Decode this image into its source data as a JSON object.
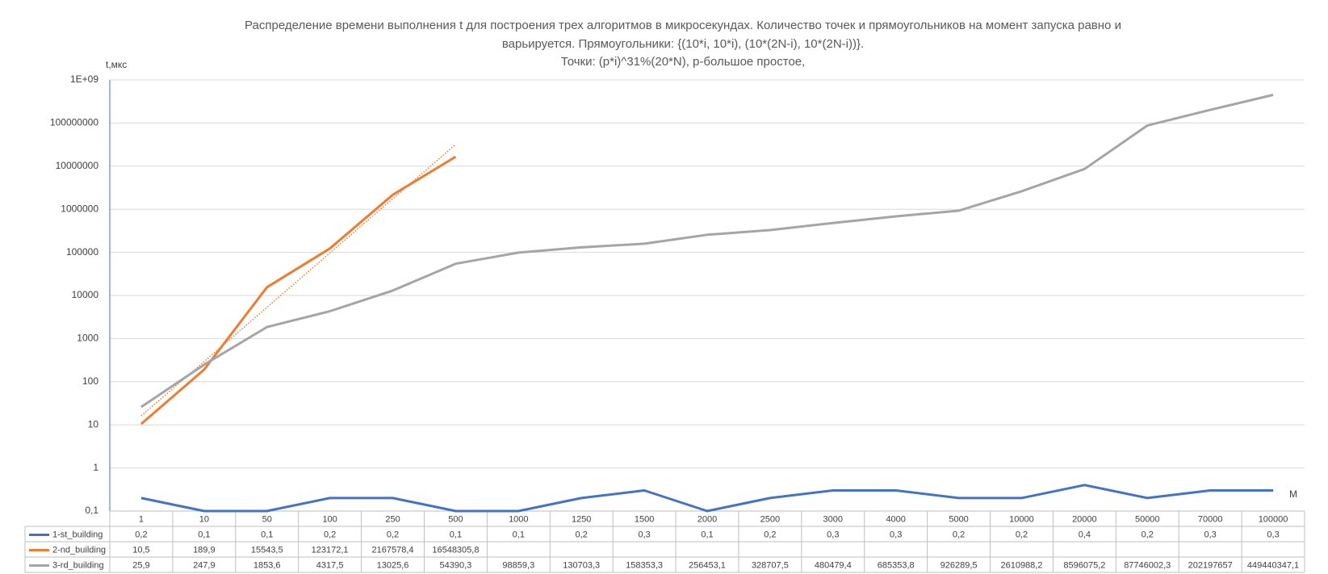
{
  "chart_data": {
    "type": "line",
    "title": [
      "Распределение времени выполнения t для построения трех алгоритмов в микросекундах. Количество точек и прямоугольников на момент запуска равно и",
      "варьируется. Прямоугольники: {(10*i, 10*i), (10*(2N-i), 10*(2N-i))}.",
      "Точки: (p*i)^31%(20*N), p-большое простое,"
    ],
    "y_label": "t,мкс",
    "x_label": "M",
    "categories": [
      "1",
      "10",
      "50",
      "100",
      "250",
      "500",
      "1000",
      "1250",
      "1500",
      "2000",
      "2500",
      "3000",
      "4000",
      "5000",
      "10000",
      "20000",
      "50000",
      "70000",
      "100000"
    ],
    "series": [
      {
        "name": "1-st_building",
        "color": "#4472c4",
        "values": [
          0.2,
          0.1,
          0.1,
          0.2,
          0.2,
          0.1,
          0.1,
          0.2,
          0.3,
          0.1,
          0.2,
          0.3,
          0.3,
          0.2,
          0.2,
          0.4,
          0.2,
          0.3,
          0.3
        ],
        "value_labels": [
          "0,2",
          "0,1",
          "0,1",
          "0,2",
          "0,2",
          "0,1",
          "0,1",
          "0,2",
          "0,3",
          "0,1",
          "0,2",
          "0,3",
          "0,3",
          "0,2",
          "0,2",
          "0,4",
          "0,2",
          "0,3",
          "0,3"
        ]
      },
      {
        "name": "2-nd_building",
        "color": "#ed7d31",
        "trendline": true,
        "values": [
          10.5,
          189.9,
          15543.5,
          123172.1,
          2167578.4,
          16548305.8,
          null,
          null,
          null,
          null,
          null,
          null,
          null,
          null,
          null,
          null,
          null,
          null,
          null
        ],
        "value_labels": [
          "10,5",
          "189,9",
          "15543,5",
          "123172,1",
          "2167578,4",
          "16548305,8",
          null,
          null,
          null,
          null,
          null,
          null,
          null,
          null,
          null,
          null,
          null,
          null,
          null
        ]
      },
      {
        "name": "3-rd_building",
        "color": "#a5a5a5",
        "values": [
          25.9,
          247.9,
          1853.6,
          4317.5,
          13025.6,
          54390.3,
          98859.3,
          130703.3,
          158353.3,
          256453.1,
          328707.5,
          480479.4,
          685353.8,
          926289.5,
          2610988.2,
          8596075.2,
          87746002.3,
          202197657,
          449440347.1
        ],
        "value_labels": [
          "25,9",
          "247,9",
          "1853,6",
          "4317,5",
          "13025,6",
          "54390,3",
          "98859,3",
          "130703,3",
          "158353,3",
          "256453,1",
          "328707,5",
          "480479,4",
          "685353,8",
          "926289,5",
          "2610988,2",
          "8596075,2",
          "87746002,3",
          "202197657",
          "449440347,1"
        ]
      }
    ],
    "log_scale": true,
    "ylim": [
      0.1,
      1000000000
    ],
    "yticks": [
      {
        "value": 0.1,
        "label": "0,1"
      },
      1,
      10,
      100,
      1000,
      10000,
      100000,
      1000000,
      10000000,
      100000000,
      {
        "value": 1000000000,
        "label": "1E+09"
      }
    ],
    "grid": true
  }
}
